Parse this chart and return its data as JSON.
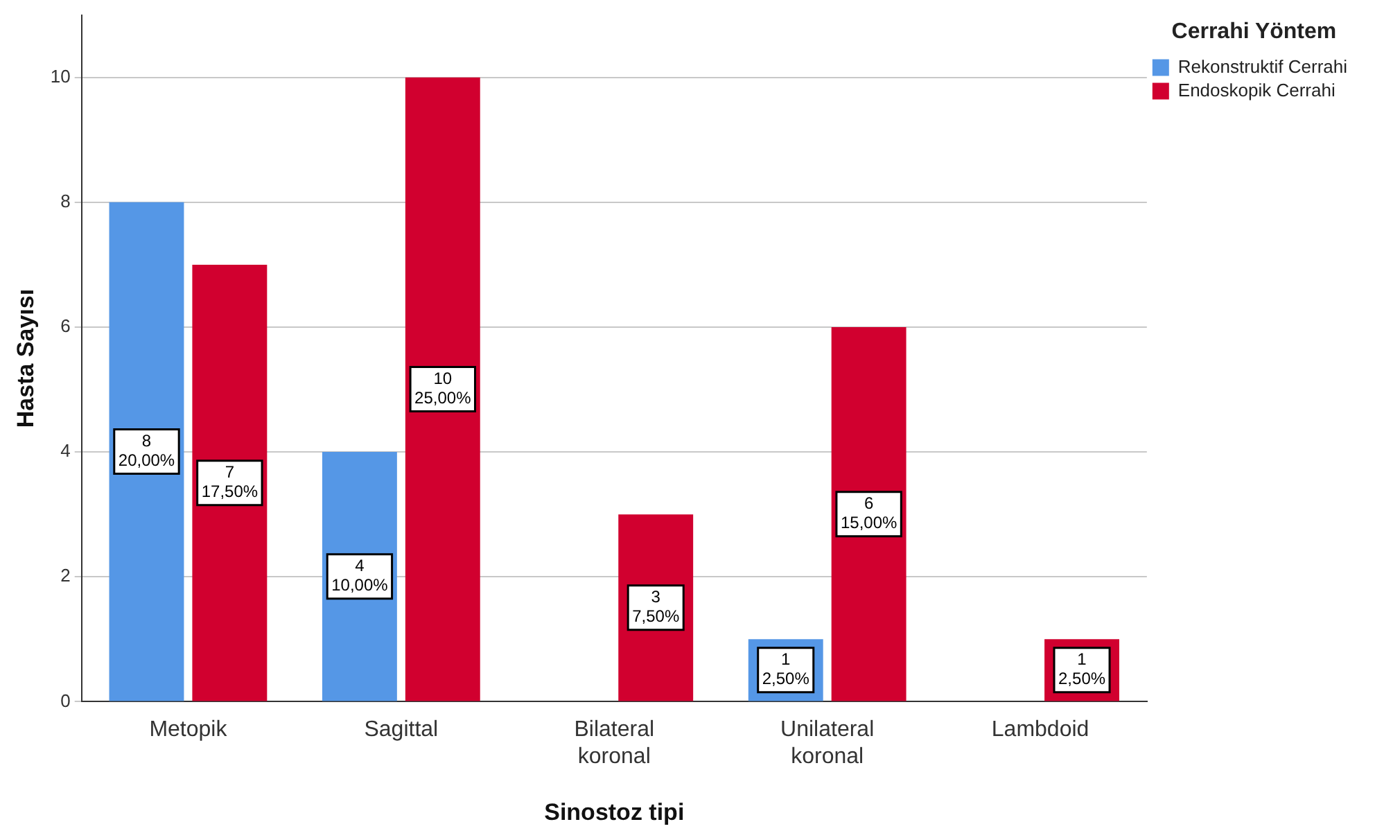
{
  "chart_data": {
    "type": "bar",
    "xlabel": "Sinostoz tipi",
    "ylabel": "Hasta Sayısı",
    "legend_title": "Cerrahi Yöntem",
    "categories": [
      "Metopik",
      "Sagittal",
      "Bilateral koronal",
      "Unilateral koronal",
      "Lambdoid"
    ],
    "series": [
      {
        "name": "Rekonstruktif Cerrahi",
        "color": "#5597e6",
        "values": [
          8,
          4,
          0,
          1,
          0
        ],
        "value_labels": [
          "8\n20,00%",
          "4\n10,00%",
          null,
          "1\n2,50%",
          null
        ]
      },
      {
        "name": "Endoskopik Cerrahi",
        "color": "#d1002f",
        "values": [
          7,
          10,
          3,
          6,
          1
        ],
        "value_labels": [
          "7\n17,50%",
          "10\n25,00%",
          "3\n7,50%",
          "6\n15,00%",
          "1\n2,50%"
        ]
      }
    ],
    "ylim": [
      0,
      11
    ],
    "yticks": [
      0,
      2,
      4,
      6,
      8,
      10
    ],
    "grid": "y",
    "legend": "top right"
  }
}
